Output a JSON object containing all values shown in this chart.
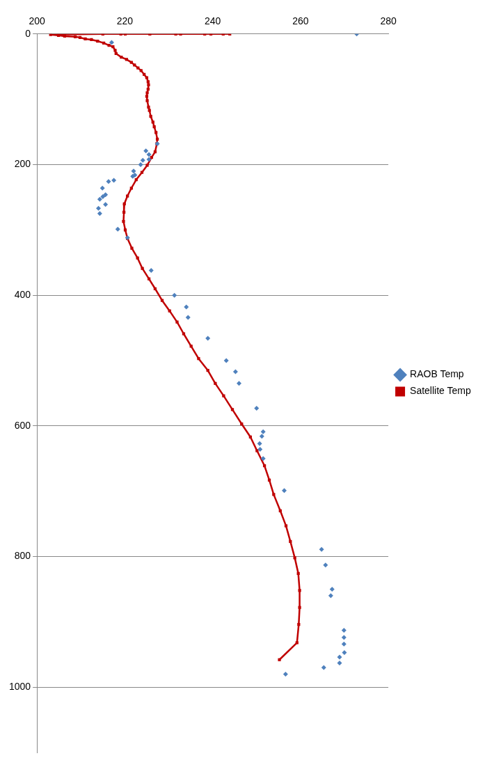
{
  "chart_data": {
    "type": "scatter",
    "xlim": [
      200,
      280
    ],
    "xticks": [
      200,
      220,
      240,
      260,
      280
    ],
    "ylim": [
      1100,
      0
    ],
    "yticks": [
      0,
      200,
      400,
      600,
      800,
      1000
    ],
    "grid": "y",
    "legend": "right",
    "series": [
      {
        "name": "RAOB Temp",
        "type": "scatter",
        "marker": "diamond",
        "color": "#4f81bd",
        "x": [
          272.8,
          217,
          227.4,
          224.8,
          225.5,
          225.5,
          224.1,
          223.6,
          222,
          222.3,
          221.8,
          217.5,
          216.3,
          214.9,
          215.6,
          215,
          214.3,
          215.6,
          214,
          214.3,
          218.4,
          220.6,
          226,
          231.3,
          234,
          234.4,
          238.9,
          243.1,
          245.2,
          246,
          250,
          251.5,
          251.2,
          250.7,
          250.8,
          251.5,
          256.3,
          264.8,
          265.7,
          267.2,
          266.9,
          269.9,
          269.9,
          269.9,
          270,
          268.9,
          268.9,
          265.3,
          256.6
        ],
        "values": [
          0,
          13,
          168,
          179,
          184.5,
          192,
          193.5,
          200,
          210,
          216,
          218,
          224,
          226,
          236,
          246,
          249,
          253,
          261,
          267,
          275,
          299,
          312,
          362,
          400,
          418,
          434,
          466,
          500,
          517,
          535,
          573,
          609,
          616,
          627,
          636,
          650,
          699,
          789,
          813,
          850,
          860,
          913,
          924,
          934,
          947,
          954,
          963,
          970,
          980
        ]
      },
      {
        "name": "Satellite Temp",
        "type": "line",
        "marker": "square",
        "color": "#c00000",
        "x": [
          243.9,
          242.4,
          239.6,
          238.2,
          232.7,
          231.6,
          225.7,
          220.1,
          219.1,
          215,
          203.1,
          204.9,
          206.3,
          208.7,
          209.8,
          211,
          212.4,
          213.8,
          215.2,
          216.4,
          217.3,
          217.8,
          218,
          219.2,
          220.4,
          221.5,
          222.2,
          223,
          223.7,
          224.4,
          225,
          225.3,
          225.4,
          225.3,
          225.1,
          225,
          225.1,
          225.4,
          225.6,
          225.9,
          226.4,
          226.7,
          227.1,
          227.4,
          227.3,
          226.9,
          226.1,
          225.1,
          223.9,
          222.6,
          221.5,
          220.6,
          219.9,
          219.8,
          219.7,
          220.1,
          220.6,
          221.6,
          222.9,
          224,
          225.5,
          226.9,
          228.5,
          230.2,
          231.9,
          233.4,
          235.1,
          236.8,
          238.9,
          240.6,
          242.5,
          244.5,
          246.6,
          248.6,
          250.1,
          251.8,
          252.9,
          253.9,
          255.4,
          256.7,
          257.7,
          258.7,
          259.5,
          259.8,
          259.8,
          259.6,
          259.2,
          255.2
        ],
        "values": [
          0,
          0,
          0,
          0,
          0,
          0,
          0,
          0,
          0,
          0,
          1,
          2.2,
          3.3,
          4.3,
          5.4,
          7.6,
          8.7,
          10.9,
          14,
          17.4,
          19.6,
          25,
          30,
          35.5,
          39,
          43.5,
          47.5,
          52,
          56,
          62,
          67,
          73,
          78,
          84.5,
          90,
          95.5,
          102,
          112,
          117,
          126,
          135,
          142,
          151,
          161,
          168,
          180.4,
          189,
          201,
          212,
          223,
          236,
          248,
          260,
          273,
          287,
          300,
          313,
          328,
          343,
          359,
          375,
          390,
          408,
          424,
          441,
          459,
          478,
          497,
          515,
          535,
          554,
          575,
          597,
          617,
          638,
          661,
          683,
          705,
          730,
          753,
          777,
          802,
          826,
          852,
          878,
          904,
          932,
          958
        ]
      }
    ]
  }
}
